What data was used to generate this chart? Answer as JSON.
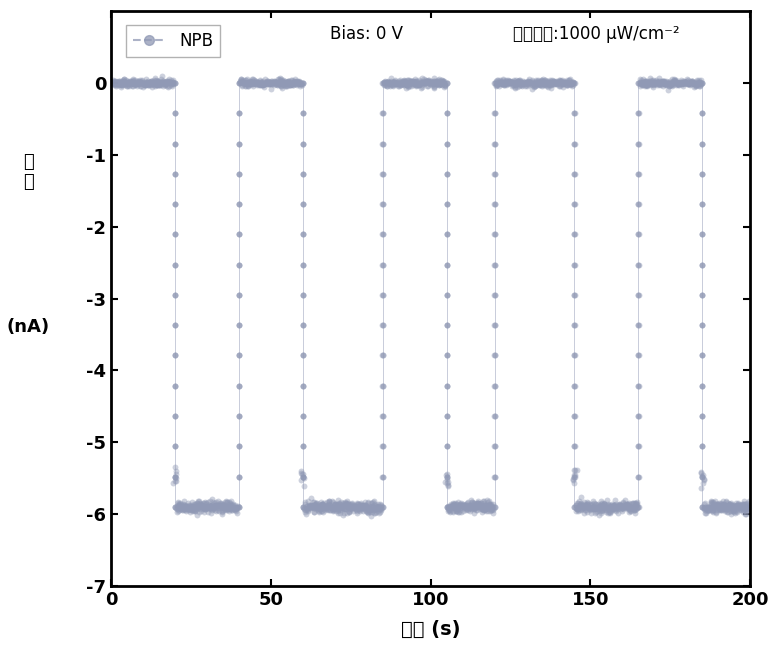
{
  "xlabel": "时间 (s)",
  "xlim": [
    0,
    200
  ],
  "ylim": [
    -7,
    1
  ],
  "yticks": [
    0,
    -1,
    -2,
    -3,
    -4,
    -5,
    -6,
    -7
  ],
  "xticks": [
    0,
    50,
    100,
    150,
    200
  ],
  "legend_label": "NPB",
  "bias_text": "Bias: 0 V",
  "intensity_text": "光照强度:1000 μW/cm⁻²",
  "line_color": "#9099b5",
  "on_level": -5.9,
  "off_level": 0.0,
  "segments": [
    {
      "type": "off",
      "t_start": 0.0,
      "t_end": 20.0
    },
    {
      "type": "on",
      "t_start": 20.0,
      "t_end": 40.0
    },
    {
      "type": "off",
      "t_start": 40.0,
      "t_end": 60.0
    },
    {
      "type": "on",
      "t_start": 60.0,
      "t_end": 85.0
    },
    {
      "type": "off",
      "t_start": 85.0,
      "t_end": 105.0
    },
    {
      "type": "on",
      "t_start": 105.0,
      "t_end": 120.0
    },
    {
      "type": "off",
      "t_start": 120.0,
      "t_end": 145.0
    },
    {
      "type": "on",
      "t_start": 145.0,
      "t_end": 165.0
    },
    {
      "type": "off",
      "t_start": 165.0,
      "t_end": 185.0
    },
    {
      "type": "on",
      "t_start": 185.0,
      "t_end": 200.0
    }
  ],
  "background_color": "#ffffff",
  "fig_width": 7.8,
  "fig_height": 6.5
}
